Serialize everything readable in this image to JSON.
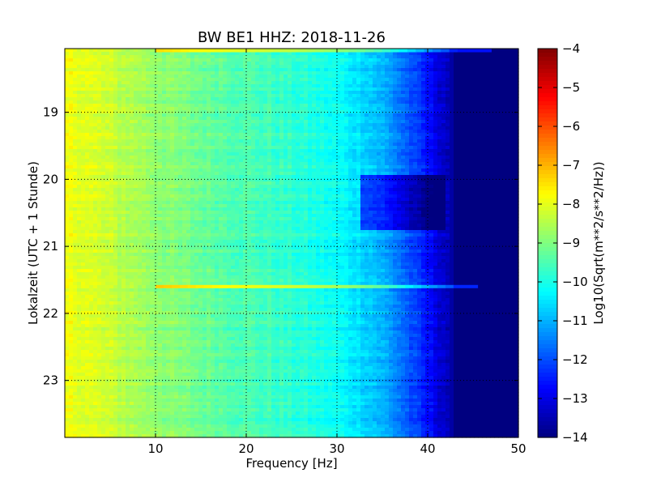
{
  "chart_data": {
    "type": "heatmap",
    "title": "BW BE1 HHZ: 2018-11-26",
    "xlabel": "Frequency [Hz]",
    "ylabel": "Lokalzeit (UTC + 1 Stunde)",
    "xlim": [
      0,
      50
    ],
    "ylim": [
      18.05,
      23.85
    ],
    "y_inverted": true,
    "x_ticks": [
      10,
      20,
      30,
      40,
      50
    ],
    "y_ticks": [
      19,
      20,
      21,
      22,
      23
    ],
    "grid": true,
    "colormap": "jet",
    "colorbar": {
      "label": "Log10(Sqrt(m**2/s**2/Hz))",
      "range": [
        -14,
        -4
      ],
      "ticks": [
        -4,
        -5,
        -6,
        -7,
        -8,
        -9,
        -10,
        -11,
        -12,
        -13,
        -14
      ]
    },
    "level_profile": {
      "frequency_hz": [
        0,
        2,
        5,
        10,
        15,
        20,
        25,
        30,
        33,
        35,
        37,
        39,
        41,
        42.5,
        43,
        50
      ],
      "log10_amplitude": [
        -7.9,
        -8.0,
        -8.3,
        -8.8,
        -9.2,
        -9.5,
        -9.8,
        -10.2,
        -10.6,
        -11.0,
        -11.6,
        -12.3,
        -13.0,
        -13.5,
        -14.0,
        -14.0
      ]
    },
    "notable_features": [
      {
        "type": "horizontal_line",
        "time": 21.6,
        "freq_range": [
          10,
          45.5
        ],
        "level_delta": 1.6
      },
      {
        "type": "horizontal_line",
        "time": 18.08,
        "freq_range": [
          10,
          47
        ],
        "level_delta": 1.4
      },
      {
        "type": "quiet_block",
        "time_range": [
          19.95,
          20.75
        ],
        "freq_range": [
          32.5,
          42
        ],
        "level_delta": -1.4
      }
    ]
  }
}
